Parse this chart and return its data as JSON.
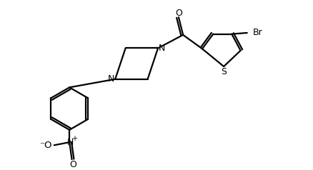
{
  "bg_color": "#ffffff",
  "line_color": "#000000",
  "line_width": 1.6,
  "figsize": [
    4.38,
    2.38
  ],
  "dpi": 100,
  "xlim": [
    0,
    10
  ],
  "ylim": [
    0,
    5.5
  ]
}
